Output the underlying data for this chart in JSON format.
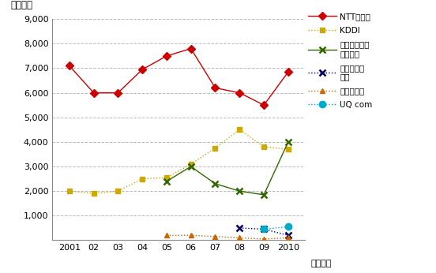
{
  "years": [
    2001,
    2002,
    2003,
    2004,
    2005,
    2006,
    2007,
    2008,
    2009,
    2010
  ],
  "NTTdocomo": [
    7100,
    6000,
    6000,
    6950,
    7500,
    7800,
    6200,
    6000,
    5500,
    6850
  ],
  "KDDI": [
    2000,
    1900,
    2000,
    2500,
    2550,
    3100,
    3750,
    4500,
    3800,
    3700
  ],
  "SoftbankMobile": [
    null,
    null,
    null,
    null,
    2400,
    3000,
    2300,
    2000,
    1850,
    4000
  ],
  "EMobile": [
    null,
    null,
    null,
    null,
    null,
    null,
    null,
    500,
    450,
    200
  ],
  "Willcom": [
    null,
    null,
    null,
    null,
    200,
    200,
    150,
    100,
    50,
    100
  ],
  "UQcom": [
    null,
    null,
    null,
    null,
    null,
    null,
    null,
    null,
    450,
    550
  ],
  "colors": {
    "NTTdocomo": "#cc0000",
    "KDDI": "#ccaa00",
    "SoftbankMobile": "#336600",
    "EMobile": "#000066",
    "Willcom": "#cc6600",
    "UQcom": "#00aacc"
  },
  "legend_labels": [
    "NTTドコモ",
    "KDDI",
    "ソフトバンク\nモバイル",
    "イー・モバ\nイル",
    "ウィルコム",
    "UQ com"
  ],
  "ylabel": "（億円）",
  "xlabel": "（年度）",
  "ylim": [
    0,
    9000
  ],
  "yticks": [
    0,
    1000,
    2000,
    3000,
    4000,
    5000,
    6000,
    7000,
    8000,
    9000
  ],
  "xtick_labels": [
    "2001",
    "02",
    "03",
    "04",
    "05",
    "06",
    "07",
    "08",
    "09",
    "2010"
  ],
  "background_color": "#ffffff",
  "grid_color": "#bbbbbb",
  "figsize": [
    5.52,
    3.46
  ],
  "dpi": 100
}
